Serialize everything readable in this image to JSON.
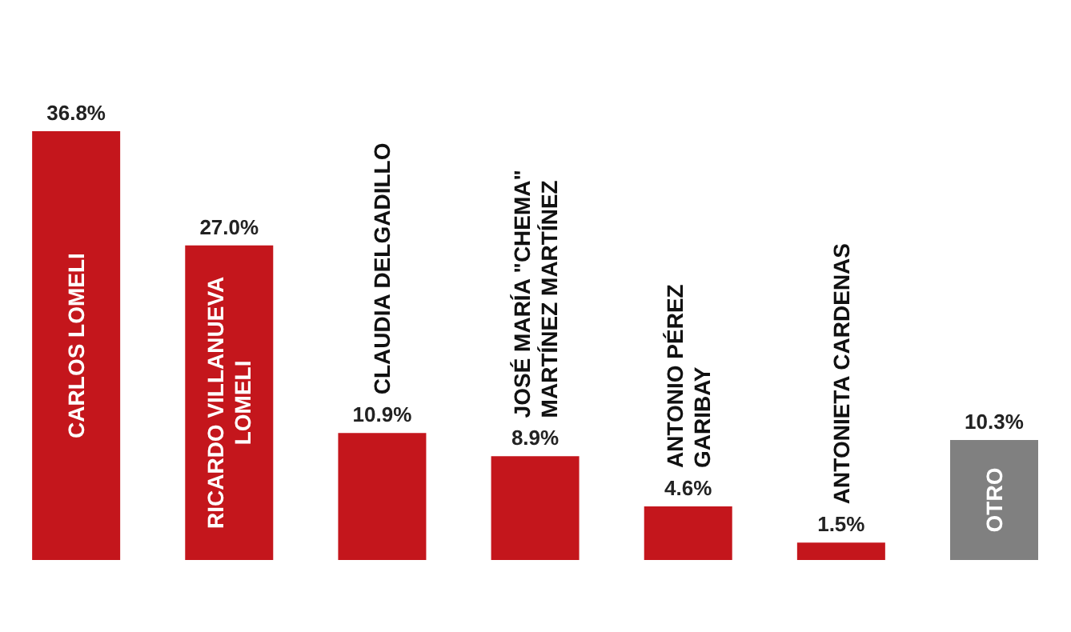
{
  "chart_data": {
    "type": "bar",
    "categories": [
      "CARLOS LOMELI",
      "RICARDO VILLANUEVA\nLOMELI",
      "CLAUDIA DELGADILLO",
      "JOSÉ MARÍA  \"CHEMA\"\nMARTÍNEZ MARTÍNEZ",
      "ANTONIO PÉREZ\nGARIBAY",
      "ANTONIETA CARDENAS",
      "OTRO"
    ],
    "values": [
      36.8,
      27.0,
      10.9,
      8.9,
      4.6,
      1.5,
      10.3
    ],
    "value_labels": [
      "36.8%",
      "27.0%",
      "10.9%",
      "8.9%",
      "4.6%",
      "1.5%",
      "10.3%"
    ],
    "colors": [
      "#c4161c",
      "#c4161c",
      "#c4161c",
      "#c4161c",
      "#c4161c",
      "#c4161c",
      "#808080"
    ],
    "grid": false,
    "legend": false
  }
}
